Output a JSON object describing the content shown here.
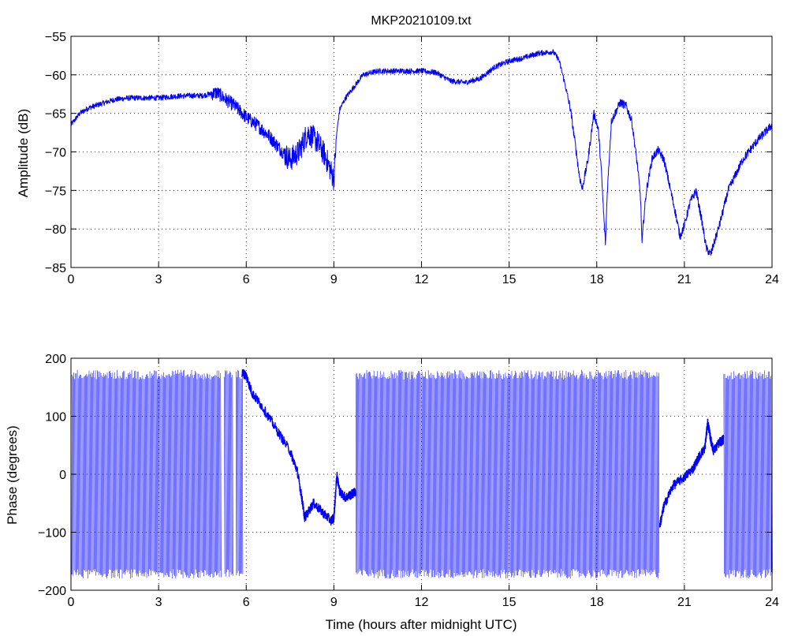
{
  "figure": {
    "title": "MKP20210109.txt"
  },
  "chart_data": [
    {
      "type": "line",
      "xlabel": "",
      "ylabel": "Amplitude (dB)",
      "xlim": [
        0,
        24
      ],
      "ylim": [
        -85,
        -55
      ],
      "xticks": [
        0,
        3,
        6,
        9,
        12,
        15,
        18,
        21,
        24
      ],
      "yticks": [
        -85,
        -80,
        -75,
        -70,
        -65,
        -60,
        -55
      ],
      "grid": true,
      "color": "#0000ff",
      "series": [
        {
          "x": [
            0,
            0.3,
            0.6,
            1,
            1.5,
            2,
            2.5,
            3,
            3.5,
            4,
            4.5,
            5,
            5.3,
            5.6,
            6,
            6.4,
            6.8,
            7.2,
            7.5,
            7.8,
            8.1,
            8.4,
            8.7,
            9,
            9.1,
            9.2,
            9.4,
            9.7,
            10,
            10.5,
            11,
            11.5,
            12,
            12.5,
            13,
            13.5,
            14,
            14.5,
            15,
            15.5,
            16,
            16.5,
            16.7,
            16.9,
            17.1,
            17.3,
            17.4,
            17.5,
            17.7,
            17.9,
            18.05,
            18.15,
            18.25,
            18.3,
            18.35,
            18.5,
            18.8,
            19.0,
            19.2,
            19.4,
            19.5,
            19.55,
            19.6,
            19.7,
            19.9,
            20.1,
            20.3,
            20.5,
            20.7,
            20.85,
            21.0,
            21.2,
            21.4,
            21.6,
            21.75,
            21.9,
            22.2,
            22.5,
            23,
            23.5,
            24
          ],
          "y": [
            -66.5,
            -65,
            -64.3,
            -63.8,
            -63.2,
            -63,
            -63,
            -63,
            -62.8,
            -62.7,
            -62.7,
            -62.3,
            -63.2,
            -64,
            -65.5,
            -66.6,
            -68,
            -69.8,
            -71,
            -70,
            -67.5,
            -68.5,
            -70.5,
            -73.5,
            -67.5,
            -64.5,
            -63,
            -61.5,
            -60,
            -59.5,
            -59.5,
            -59.5,
            -59.5,
            -59.7,
            -60.8,
            -61,
            -60.5,
            -59,
            -58.2,
            -57.8,
            -57.2,
            -57,
            -58,
            -61,
            -64.5,
            -70,
            -73,
            -74.8,
            -71,
            -65,
            -67,
            -72,
            -79,
            -82,
            -76,
            -66,
            -63.6,
            -64,
            -66,
            -72,
            -76,
            -82,
            -79,
            -75,
            -70.8,
            -69.8,
            -71,
            -74.5,
            -78,
            -81,
            -79.5,
            -76.5,
            -75,
            -79,
            -82.5,
            -83.3,
            -79.5,
            -75,
            -71,
            -68.5,
            -66.5
          ]
        }
      ]
    },
    {
      "type": "line",
      "xlabel": "Time (hours after midnight UTC)",
      "ylabel": "Phase (degrees)",
      "xlim": [
        0,
        24
      ],
      "ylim": [
        -200,
        200
      ],
      "xticks": [
        0,
        3,
        6,
        9,
        12,
        15,
        18,
        21,
        24
      ],
      "yticks": [
        -200,
        -100,
        0,
        100,
        200
      ],
      "grid": true,
      "color": "#0000ff",
      "series": [
        {
          "x": [
            5.85,
            6.0,
            6.2,
            6.5,
            7.0,
            7.5,
            7.75,
            7.9,
            8.0,
            8.3,
            8.6,
            8.9,
            9.0,
            9.05,
            9.1,
            9.2,
            9.4,
            9.6,
            9.75
          ],
          "y": [
            175,
            170,
            140,
            120,
            80,
            40,
            5,
            -40,
            -75,
            -50,
            -65,
            -80,
            -75,
            -40,
            0,
            -30,
            -40,
            -35,
            -30
          ]
        },
        {
          "x": [
            20.15,
            20.3,
            20.6,
            21.0,
            21.3,
            21.5,
            21.7,
            21.8,
            21.9,
            22.0,
            22.2,
            22.35
          ],
          "y": [
            -90,
            -55,
            -20,
            -5,
            10,
            30,
            45,
            90,
            60,
            40,
            55,
            60
          ]
        }
      ]
    }
  ]
}
